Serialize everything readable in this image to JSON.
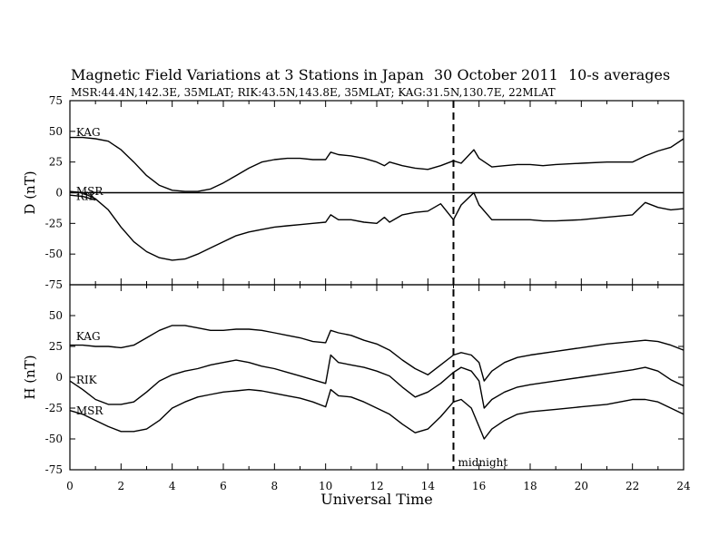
{
  "header": {
    "title": "Magnetic Field Variations at 3 Stations in Japan",
    "date": "30 October 2011",
    "averaging": "10-s averages",
    "stations_line": "MSR:44.4N,142.3E, 35MLAT;  RIK:43.5N,143.8E, 35MLAT;  KAG:31.5N,130.7E, 22MLAT"
  },
  "annotation": {
    "midnight_label": "midnight"
  },
  "chart_data": [
    {
      "type": "line",
      "panel": "top",
      "ylabel": "D (nT)",
      "ylim": [
        -75,
        75
      ],
      "yticks": [
        -75,
        -50,
        -25,
        0,
        25,
        50,
        75
      ],
      "xlim": [
        0,
        24
      ],
      "zero_line": true,
      "vline_x": 15,
      "series": [
        {
          "name": "KAG",
          "label_x": 0.1,
          "label_y": 46,
          "x": [
            0,
            0.5,
            1,
            1.5,
            2,
            2.5,
            3,
            3.5,
            4,
            4.5,
            5,
            5.5,
            6,
            6.5,
            7,
            7.5,
            8,
            8.5,
            9,
            9.5,
            10,
            10.2,
            10.5,
            11,
            11.5,
            12,
            12.3,
            12.5,
            13,
            13.5,
            14,
            14.5,
            15,
            15.3,
            15.8,
            16,
            16.5,
            17,
            17.5,
            18,
            18.5,
            19,
            20,
            21,
            22,
            22.5,
            23,
            23.5,
            24
          ],
          "y": [
            45,
            45,
            44,
            42,
            35,
            25,
            14,
            6,
            2,
            1,
            1,
            3,
            8,
            14,
            20,
            25,
            27,
            28,
            28,
            27,
            27,
            33,
            31,
            30,
            28,
            25,
            22,
            25,
            22,
            20,
            19,
            22,
            26,
            24,
            35,
            28,
            21,
            22,
            23,
            23,
            22,
            23,
            24,
            25,
            25,
            30,
            34,
            37,
            44
          ]
        },
        {
          "name": "MSR",
          "label_x": 0.1,
          "label_y": -2,
          "x": [
            0,
            0.5,
            1,
            1.5,
            2,
            2.5,
            3,
            3.5,
            4,
            4.5,
            5,
            5.5,
            6,
            6.5,
            7,
            7.5,
            8,
            8.5,
            9,
            9.5,
            10,
            10.2,
            10.5,
            11,
            11.5,
            12,
            12.3,
            12.5,
            13,
            13.5,
            14,
            14.5,
            15,
            15.3,
            15.8,
            16,
            16.5,
            17,
            17.5,
            18,
            18.5,
            19,
            20,
            21,
            22,
            22.5,
            23,
            23.5,
            24
          ],
          "y": [
            1,
            0,
            -5,
            -14,
            -28,
            -40,
            -48,
            -53,
            -55,
            -54,
            -50,
            -45,
            -40,
            -35,
            -32,
            -30,
            -28,
            -27,
            -26,
            -25,
            -24,
            -18,
            -22,
            -22,
            -24,
            -25,
            -20,
            -24,
            -18,
            -16,
            -15,
            -9,
            -22,
            -10,
            0,
            -10,
            -22,
            -22,
            -22,
            -22,
            -23,
            -23,
            -22,
            -20,
            -18,
            -8,
            -12,
            -14,
            -13
          ]
        },
        {
          "name": "RIK",
          "label_x": 0.1,
          "label_y": -6,
          "x": [
            0,
            0.5,
            1
          ],
          "y": [
            -2,
            -3,
            -6
          ]
        }
      ]
    },
    {
      "type": "line",
      "panel": "bottom",
      "ylabel": "H (nT)",
      "xlabel": "Universal Time",
      "ylim": [
        -75,
        75
      ],
      "yticks": [
        -75,
        -50,
        -25,
        0,
        25,
        50
      ],
      "xlim": [
        0,
        24
      ],
      "xticks": [
        0,
        2,
        4,
        6,
        8,
        10,
        12,
        14,
        16,
        18,
        20,
        22,
        24
      ],
      "vline_x": 15,
      "series": [
        {
          "name": "KAG",
          "label_x": 0.1,
          "label_y": 30,
          "x": [
            0,
            0.5,
            1,
            1.5,
            2,
            2.5,
            3,
            3.5,
            4,
            4.5,
            5,
            5.5,
            6,
            6.5,
            7,
            7.5,
            8,
            8.5,
            9,
            9.5,
            10,
            10.2,
            10.5,
            11,
            11.5,
            12,
            12.5,
            13,
            13.5,
            14,
            14.5,
            15,
            15.3,
            15.7,
            16,
            16.2,
            16.5,
            17,
            17.5,
            18,
            19,
            20,
            21,
            22,
            22.5,
            23,
            23.5,
            24
          ],
          "y": [
            26,
            26,
            25,
            25,
            24,
            26,
            32,
            38,
            42,
            42,
            40,
            38,
            38,
            39,
            39,
            38,
            36,
            34,
            32,
            29,
            28,
            38,
            36,
            34,
            30,
            27,
            22,
            14,
            7,
            2,
            10,
            18,
            20,
            18,
            12,
            -3,
            5,
            12,
            16,
            18,
            21,
            24,
            27,
            29,
            30,
            29,
            26,
            22
          ]
        },
        {
          "name": "RIK",
          "label_x": 0.1,
          "label_y": -5,
          "x": [
            0,
            0.5,
            1,
            1.5,
            2,
            2.5,
            3,
            3.5,
            4,
            4.5,
            5,
            5.5,
            6,
            6.5,
            7,
            7.5,
            8,
            8.5,
            9,
            9.5,
            10,
            10.2,
            10.5,
            11,
            11.5,
            12,
            12.5,
            13,
            13.5,
            14,
            14.5,
            15,
            15.3,
            15.7,
            16,
            16.2,
            16.5,
            17,
            17.5,
            18,
            19,
            20,
            21,
            22,
            22.5,
            23,
            23.5,
            24
          ],
          "y": [
            -3,
            -10,
            -18,
            -22,
            -22,
            -20,
            -12,
            -3,
            2,
            5,
            7,
            10,
            12,
            14,
            12,
            9,
            7,
            4,
            1,
            -2,
            -5,
            18,
            12,
            10,
            8,
            5,
            1,
            -8,
            -16,
            -12,
            -5,
            4,
            8,
            5,
            -3,
            -25,
            -18,
            -12,
            -8,
            -6,
            -3,
            0,
            3,
            6,
            8,
            5,
            -2,
            -7
          ]
        },
        {
          "name": "MSR",
          "label_x": 0.1,
          "label_y": -30,
          "x": [
            0,
            0.5,
            1,
            1.5,
            2,
            2.5,
            3,
            3.5,
            4,
            4.5,
            5,
            5.5,
            6,
            6.5,
            7,
            7.5,
            8,
            8.5,
            9,
            9.5,
            10,
            10.2,
            10.5,
            11,
            11.5,
            12,
            12.5,
            13,
            13.5,
            14,
            14.5,
            15,
            15.3,
            15.7,
            16,
            16.2,
            16.5,
            17,
            17.5,
            18,
            19,
            20,
            21,
            22,
            22.5,
            23,
            23.5,
            24
          ],
          "y": [
            -27,
            -30,
            -35,
            -40,
            -44,
            -44,
            -42,
            -35,
            -25,
            -20,
            -16,
            -14,
            -12,
            -11,
            -10,
            -11,
            -13,
            -15,
            -17,
            -20,
            -24,
            -10,
            -15,
            -16,
            -20,
            -25,
            -30,
            -38,
            -45,
            -42,
            -32,
            -20,
            -18,
            -25,
            -40,
            -50,
            -42,
            -35,
            -30,
            -28,
            -26,
            -24,
            -22,
            -18,
            -18,
            -20,
            -25,
            -30
          ]
        }
      ]
    }
  ]
}
